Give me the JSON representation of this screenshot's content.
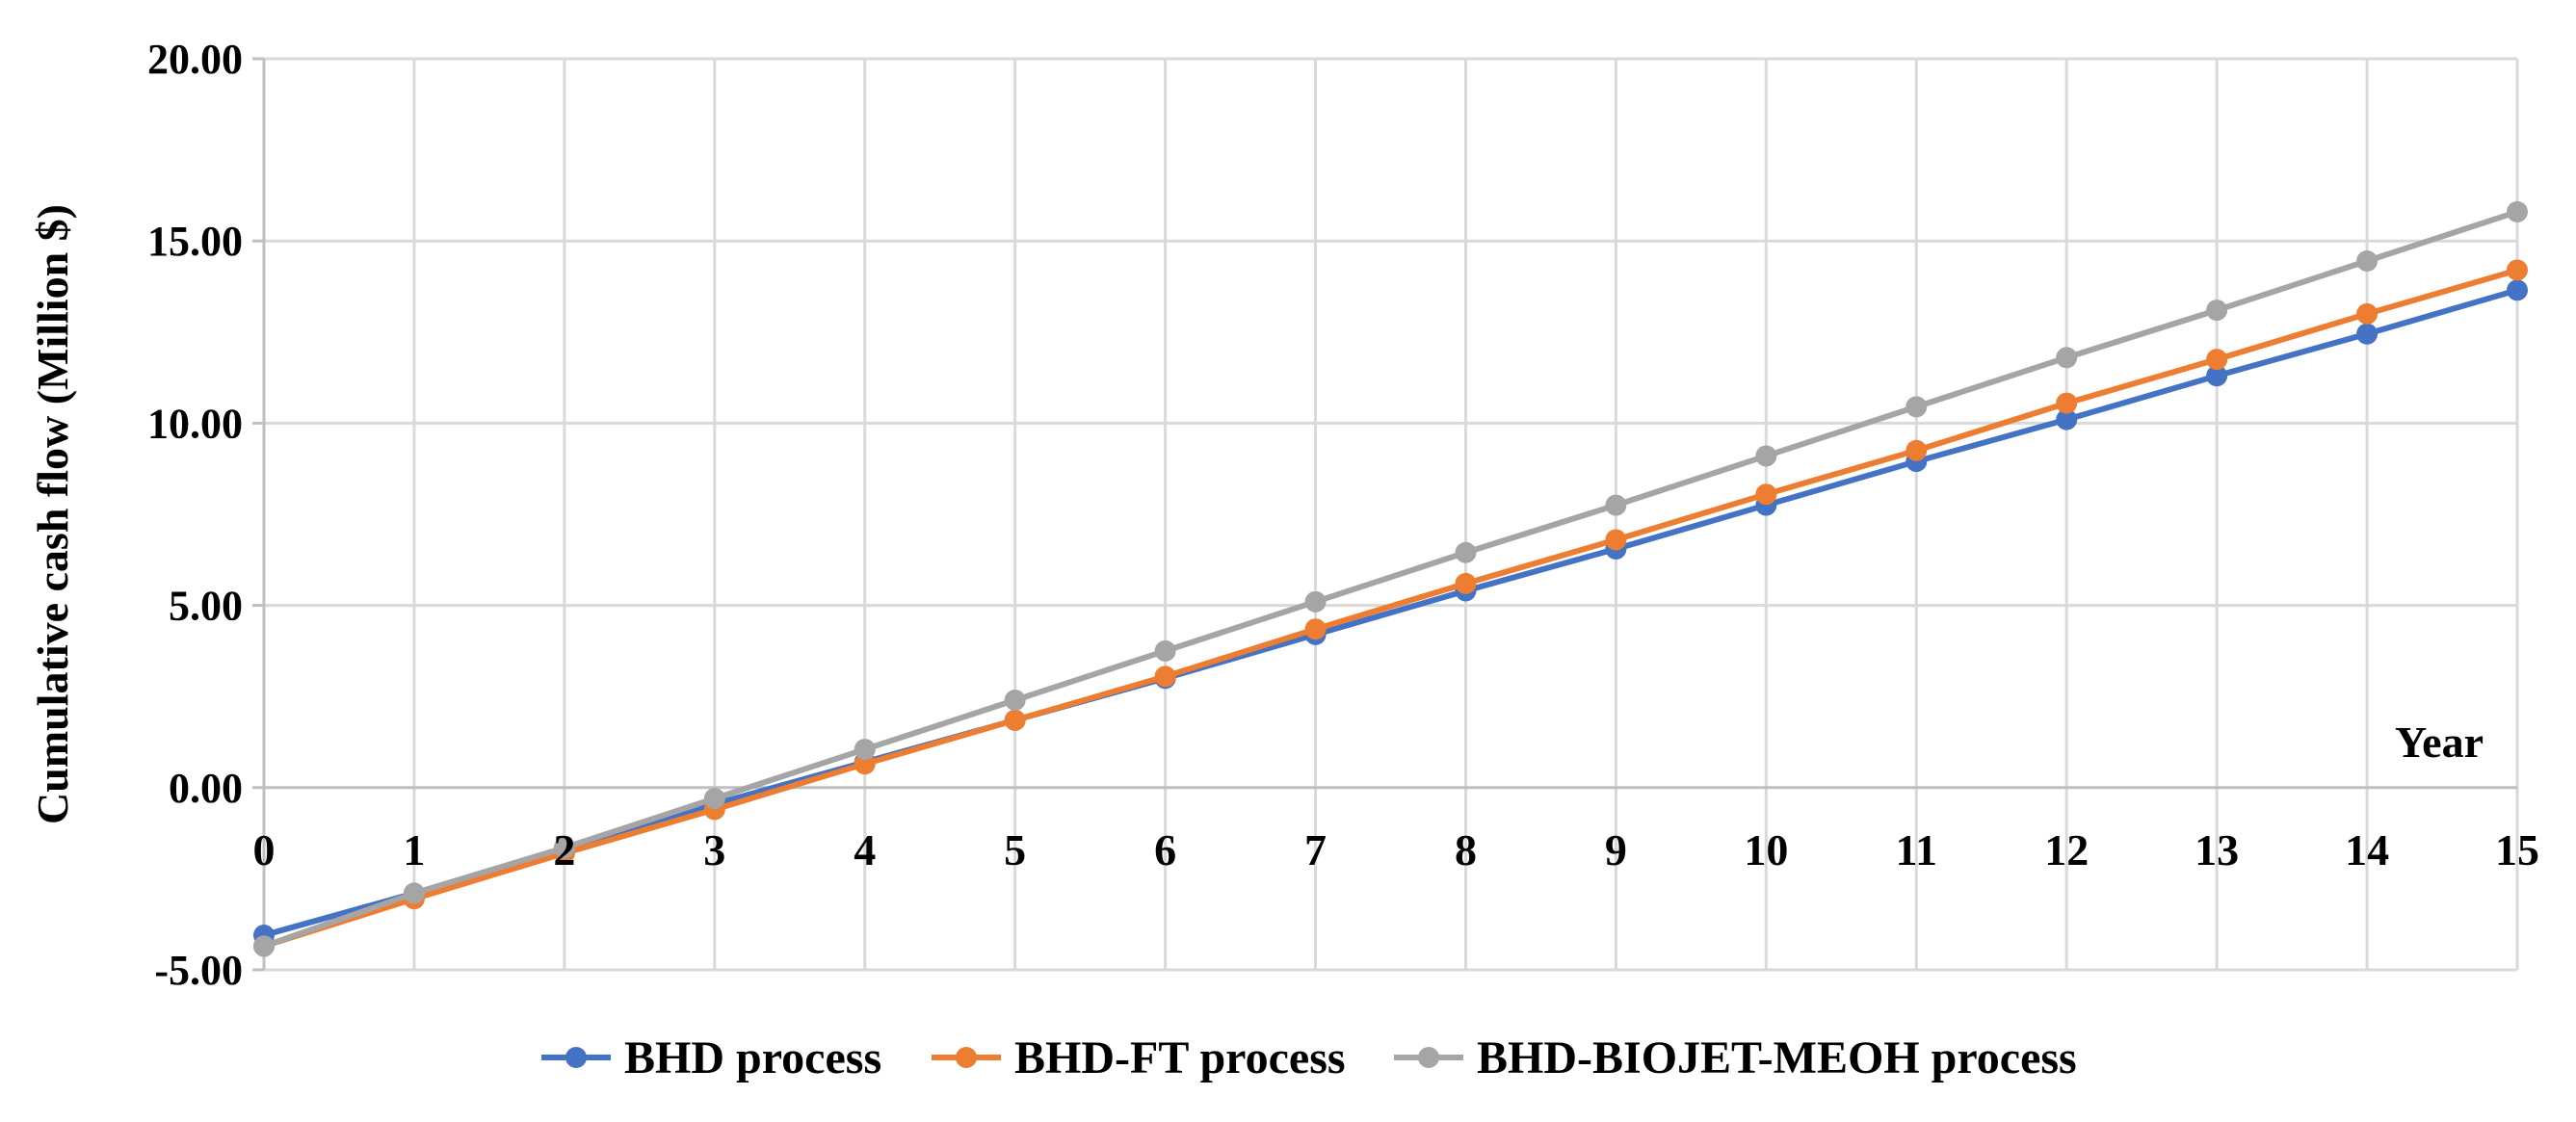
{
  "chart_data": {
    "type": "line",
    "title": "",
    "xlabel": "Year",
    "ylabel": "Cumulative cash flow (Million $)",
    "x": [
      0,
      1,
      2,
      3,
      4,
      5,
      6,
      7,
      8,
      9,
      10,
      11,
      12,
      13,
      14,
      15
    ],
    "x_tick_labels": [
      "0",
      "1",
      "2",
      "3",
      "4",
      "5",
      "6",
      "7",
      "8",
      "9",
      "10",
      "11",
      "12",
      "13",
      "14",
      "15"
    ],
    "ylim": [
      -5,
      20
    ],
    "y_ticks": [
      -5,
      0,
      5,
      10,
      15,
      20
    ],
    "y_tick_labels": [
      "-5.00",
      "0.00",
      "5.00",
      "10.00",
      "15.00",
      "20.00"
    ],
    "grid": true,
    "legend_position": "bottom",
    "series": [
      {
        "name": "BHD process",
        "color": "#4472C4",
        "values": [
          -4.05,
          -2.9,
          -1.7,
          -0.45,
          0.7,
          1.85,
          3.0,
          4.2,
          5.4,
          6.55,
          7.75,
          8.95,
          10.1,
          11.3,
          12.45,
          13.65
        ]
      },
      {
        "name": "BHD-FT process",
        "color": "#ED7D31",
        "values": [
          -4.35,
          -3.05,
          -1.8,
          -0.6,
          0.65,
          1.85,
          3.05,
          4.35,
          5.6,
          6.8,
          8.05,
          9.25,
          10.55,
          11.75,
          13.0,
          14.2
        ]
      },
      {
        "name": "BHD-BIOJET-MEOH process",
        "color": "#A5A5A5",
        "values": [
          -4.35,
          -2.9,
          -1.65,
          -0.3,
          1.05,
          2.4,
          3.75,
          5.1,
          6.45,
          7.75,
          9.1,
          10.45,
          11.8,
          13.1,
          14.45,
          15.8
        ]
      }
    ],
    "gridline_color": "#D9D9D9",
    "axis_color": "#BFBFBF"
  }
}
